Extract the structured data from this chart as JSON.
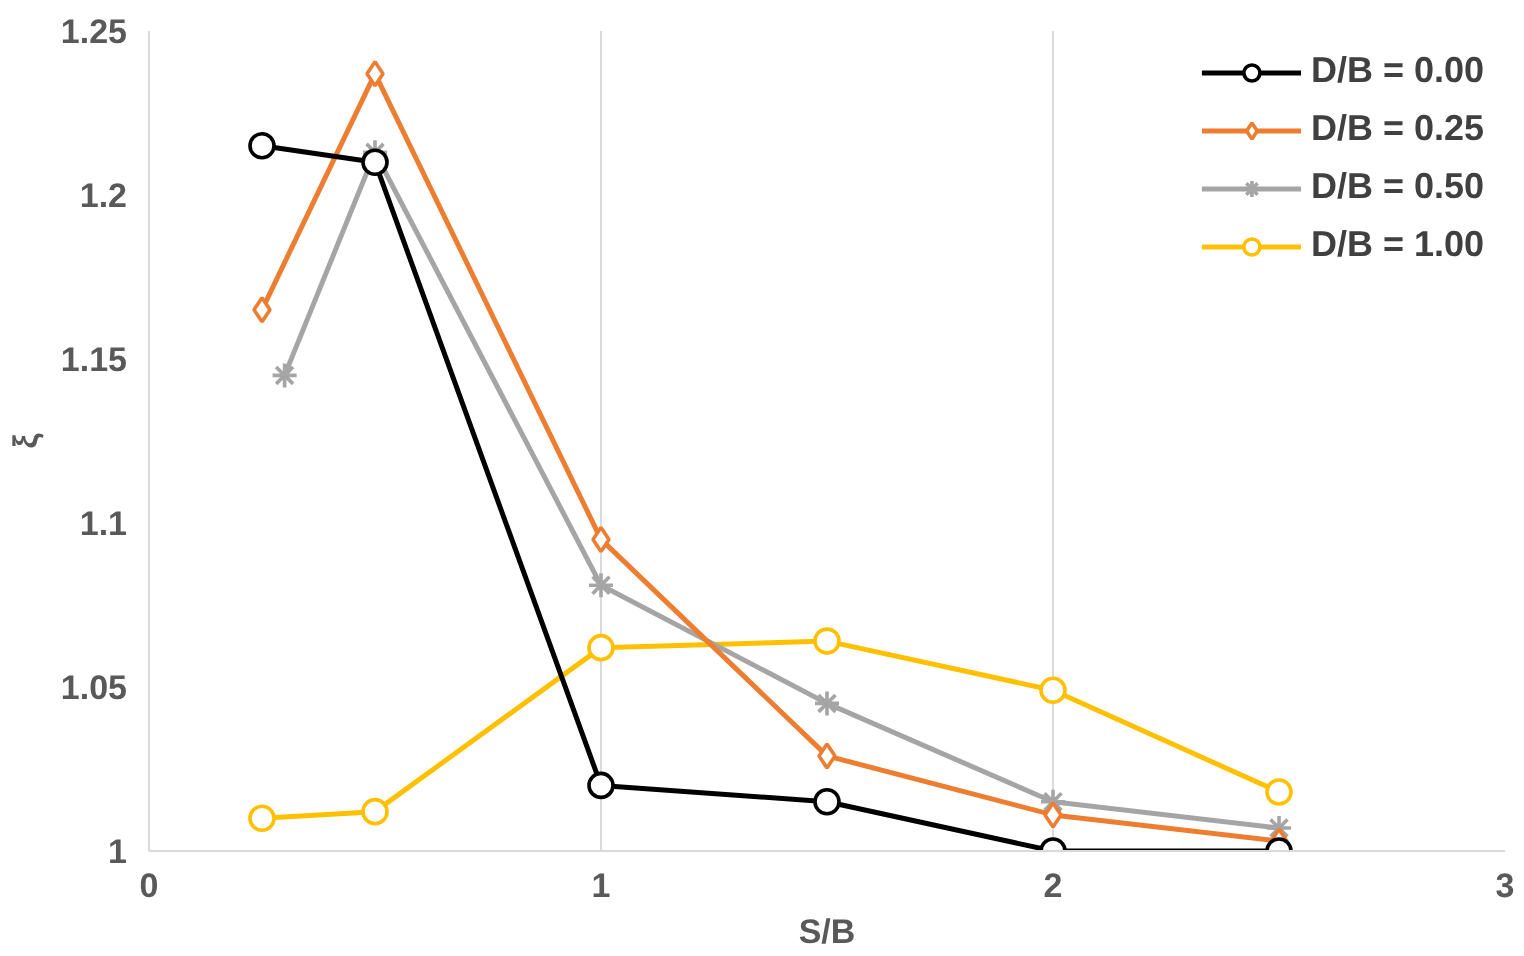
{
  "chart_data": {
    "type": "line",
    "xlabel": "S/B",
    "ylabel": "ξ",
    "xlim": [
      0,
      3
    ],
    "ylim": [
      1,
      1.25
    ],
    "xticks": [
      0,
      1,
      2,
      3
    ],
    "yticks": [
      1,
      1.05,
      1.1,
      1.15,
      1.2,
      1.25
    ],
    "grid": "x",
    "legend": "top right",
    "series": [
      {
        "name": "D/B = 0.00",
        "color": "#000000",
        "marker": "circle",
        "x": [
          0.25,
          0.5,
          1,
          1.5,
          2,
          2.5
        ],
        "values": [
          1.215,
          1.21,
          1.02,
          1.015,
          1.0,
          1.0
        ]
      },
      {
        "name": "D/B = 0.25",
        "color": "#ed7d31",
        "marker": "diamond",
        "x": [
          0.25,
          0.5,
          1,
          1.5,
          2,
          2.5
        ],
        "values": [
          1.165,
          1.237,
          1.095,
          1.029,
          1.011,
          1.003
        ]
      },
      {
        "name": "D/B = 0.50",
        "color": "#a5a5a5",
        "marker": "cross",
        "x": [
          0.3,
          0.5,
          1,
          1.5,
          2,
          2.5
        ],
        "values": [
          1.145,
          1.213,
          1.081,
          1.045,
          1.015,
          1.007
        ]
      },
      {
        "name": "D/B = 1.00",
        "color": "#ffc000",
        "marker": "circle",
        "x": [
          0.25,
          0.5,
          1,
          1.5,
          2,
          2.5
        ],
        "values": [
          1.01,
          1.012,
          1.062,
          1.064,
          1.049,
          1.018
        ]
      }
    ]
  }
}
